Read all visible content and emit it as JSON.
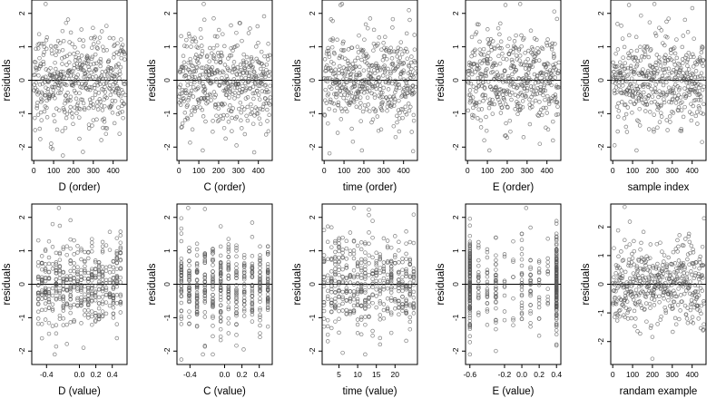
{
  "figure": {
    "background": "#ffffff",
    "point_color": "#555555",
    "line_color": "#000000"
  },
  "chart_data": [
    {
      "type": "scatter",
      "xlabel": "D (order)",
      "ylabel": "residuals",
      "xlim": [
        -10,
        470
      ],
      "ylim": [
        -2.4,
        2.4
      ],
      "xticks": [
        0,
        100,
        200,
        300,
        400
      ],
      "xtick_labels": [
        "0",
        "100",
        "200",
        "300",
        "400"
      ],
      "yticks": [
        -2,
        -1,
        0,
        1,
        2
      ],
      "ytick_labels": [
        "-2",
        "-1",
        "0",
        "1",
        "2"
      ],
      "reference_line": 0,
      "n_points": 460,
      "x_range": [
        1,
        460
      ],
      "x_mode": "uniform",
      "notable_points": [
        {
          "x": 60,
          "y": 2.28
        },
        {
          "x": 95,
          "y": -2.05
        },
        {
          "x": 230,
          "y": -1.75
        }
      ]
    },
    {
      "type": "scatter",
      "xlabel": "C (order)",
      "ylabel": "residuals",
      "xlim": [
        -10,
        470
      ],
      "ylim": [
        -2.4,
        2.4
      ],
      "xticks": [
        0,
        100,
        200,
        300,
        400
      ],
      "xtick_labels": [
        "0",
        "100",
        "200",
        "300",
        "400"
      ],
      "yticks": [
        -2,
        -1,
        0,
        1,
        2
      ],
      "ytick_labels": [
        "-2",
        "-1",
        "0",
        "1",
        "2"
      ],
      "reference_line": 0,
      "n_points": 460,
      "x_range": [
        1,
        460
      ],
      "x_mode": "uniform",
      "notable_points": [
        {
          "x": 125,
          "y": 2.28
        },
        {
          "x": 120,
          "y": -2.1
        },
        {
          "x": 290,
          "y": -1.95
        }
      ]
    },
    {
      "type": "scatter",
      "xlabel": "time (order)",
      "ylabel": "residuals",
      "xlim": [
        -10,
        470
      ],
      "ylim": [
        -2.4,
        2.4
      ],
      "xticks": [
        0,
        100,
        200,
        300,
        400
      ],
      "xtick_labels": [
        "0",
        "100",
        "200",
        "300",
        "400"
      ],
      "yticks": [
        -2,
        -1,
        0,
        1,
        2
      ],
      "ytick_labels": [
        "-2",
        "-1",
        "0",
        "1",
        "2"
      ],
      "reference_line": 0,
      "n_points": 460,
      "x_range": [
        1,
        460
      ],
      "x_mode": "uniform",
      "notable_points": [
        {
          "x": 90,
          "y": 2.28
        },
        {
          "x": 190,
          "y": -2.1
        },
        {
          "x": 360,
          "y": -1.7
        }
      ]
    },
    {
      "type": "scatter",
      "xlabel": "E (order)",
      "ylabel": "residuals",
      "xlim": [
        -10,
        470
      ],
      "ylim": [
        -2.4,
        2.4
      ],
      "xticks": [
        0,
        100,
        200,
        300,
        400
      ],
      "xtick_labels": [
        "0",
        "100",
        "200",
        "300",
        "400"
      ],
      "yticks": [
        -2,
        -1,
        0,
        1,
        2
      ],
      "ytick_labels": [
        "-2",
        "-1",
        "0",
        "1",
        "2"
      ],
      "reference_line": 0,
      "n_points": 460,
      "x_range": [
        1,
        460
      ],
      "x_mode": "uniform",
      "notable_points": [
        {
          "x": 265,
          "y": 2.28
        },
        {
          "x": 110,
          "y": -2.1
        },
        {
          "x": 430,
          "y": -1.8
        }
      ]
    },
    {
      "type": "scatter",
      "xlabel": "sample index",
      "ylabel": "residuals",
      "xlim": [
        -10,
        470
      ],
      "ylim": [
        -2.4,
        2.4
      ],
      "xticks": [
        0,
        100,
        200,
        300,
        400
      ],
      "xtick_labels": [
        "0",
        "100",
        "200",
        "300",
        "400"
      ],
      "yticks": [
        -2,
        -1,
        0,
        1,
        2
      ],
      "ytick_labels": [
        "-2",
        "-1",
        "0",
        "1",
        "2"
      ],
      "reference_line": 0,
      "n_points": 460,
      "x_range": [
        1,
        460
      ],
      "x_mode": "uniform",
      "notable_points": [
        {
          "x": 210,
          "y": 2.28
        },
        {
          "x": 120,
          "y": -2.1
        },
        {
          "x": 450,
          "y": -1.85
        }
      ]
    },
    {
      "type": "scatter",
      "xlabel": "D (value)",
      "ylabel": "residuals",
      "xlim": [
        -0.58,
        0.58
      ],
      "ylim": [
        -2.4,
        2.4
      ],
      "xticks": [
        -0.4,
        0.0,
        0.2,
        0.4
      ],
      "xtick_labels": [
        "-0.4",
        "0.0",
        "0.2",
        "0.4"
      ],
      "yticks": [
        -2,
        -1,
        0,
        1,
        2
      ],
      "ytick_labels": [
        "-2",
        "-1",
        "0",
        "1",
        "2"
      ],
      "reference_line": 0,
      "n_points": 460,
      "x_range": [
        -0.5,
        0.5
      ],
      "x_mode": "columns",
      "x_columns": 24,
      "notable_points": [
        {
          "x": -0.25,
          "y": 2.28
        },
        {
          "x": -0.3,
          "y": -2.1
        },
        {
          "x": 0.05,
          "y": -1.9
        }
      ]
    },
    {
      "type": "scatter",
      "xlabel": "C (value)",
      "ylabel": "residuals",
      "xlim": [
        -0.55,
        0.55
      ],
      "ylim": [
        -2.4,
        2.4
      ],
      "xticks": [
        -0.4,
        0.0,
        0.2,
        0.4
      ],
      "xtick_labels": [
        "-0.4",
        "0.0",
        "0.2",
        "0.4"
      ],
      "yticks": [
        -2,
        -1,
        0,
        1,
        2
      ],
      "ytick_labels": [
        "-2",
        "-1",
        "0",
        "1",
        "2"
      ],
      "reference_line": 0,
      "n_points": 460,
      "x_range": [
        -0.5,
        0.5
      ],
      "x_mode": "columns",
      "x_columns": 12,
      "notable_points": [
        {
          "x": -0.42,
          "y": 2.28
        },
        {
          "x": -0.25,
          "y": -2.1
        },
        {
          "x": 0.22,
          "y": -1.95
        }
      ]
    },
    {
      "type": "scatter",
      "xlabel": "time (value)",
      "ylabel": "residuals",
      "xlim": [
        0.5,
        26
      ],
      "ylim": [
        -2.4,
        2.4
      ],
      "xticks": [
        5,
        10,
        15,
        20
      ],
      "xtick_labels": [
        "5",
        "10",
        "15",
        "20"
      ],
      "yticks": [
        -2,
        -1,
        0,
        1,
        2
      ],
      "ytick_labels": [
        "-2",
        "-1",
        "0",
        "1",
        "2"
      ],
      "reference_line": 0,
      "n_points": 460,
      "x_range": [
        1,
        25
      ],
      "x_mode": "columns",
      "x_columns": 25,
      "notable_points": [
        {
          "x": 9,
          "y": 2.28
        },
        {
          "x": 6,
          "y": -2.05
        },
        {
          "x": 12,
          "y": -2.1
        }
      ]
    },
    {
      "type": "scatter",
      "xlabel": "E (value)",
      "ylabel": "residuals",
      "xlim": [
        -0.65,
        0.45
      ],
      "ylim": [
        -2.4,
        2.4
      ],
      "xticks": [
        -0.6,
        -0.2,
        0.0,
        0.2,
        0.4
      ],
      "xtick_labels": [
        "-0.6",
        "-0.2",
        "0.0",
        "0.2",
        "0.4"
      ],
      "yticks": [
        -2,
        -1,
        0,
        1,
        2
      ],
      "ytick_labels": [
        "-2",
        "-1",
        "0",
        "1",
        "2"
      ],
      "reference_line": 0,
      "n_points": 460,
      "x_range": [
        -0.6,
        0.4
      ],
      "x_mode": "columns",
      "x_columns": 11,
      "column_weights": [
        8,
        1,
        1,
        2,
        1,
        1,
        2,
        2,
        1,
        1,
        10
      ],
      "notable_points": [
        {
          "x": 0.05,
          "y": 2.28
        },
        {
          "x": -0.6,
          "y": -2.1
        },
        {
          "x": 0.4,
          "y": -1.8
        }
      ]
    },
    {
      "type": "scatter",
      "xlabel": "randam example",
      "ylabel": "residuals",
      "xlim": [
        -10,
        470
      ],
      "ylim": [
        -2.8,
        2.8
      ],
      "xticks": [
        0,
        100,
        200,
        300,
        400
      ],
      "xtick_labels": [
        "0",
        "100",
        "200",
        "300",
        "400"
      ],
      "yticks": [
        -2,
        -1,
        0,
        1,
        2
      ],
      "ytick_labels": [
        "-2",
        "-1",
        "0",
        "1",
        "2"
      ],
      "reference_line": 0,
      "n_points": 460,
      "x_range": [
        1,
        460
      ],
      "x_mode": "uniform",
      "notable_points": [
        {
          "x": 60,
          "y": 2.7
        },
        {
          "x": 200,
          "y": -2.6
        },
        {
          "x": 460,
          "y": 2.3
        }
      ]
    }
  ]
}
